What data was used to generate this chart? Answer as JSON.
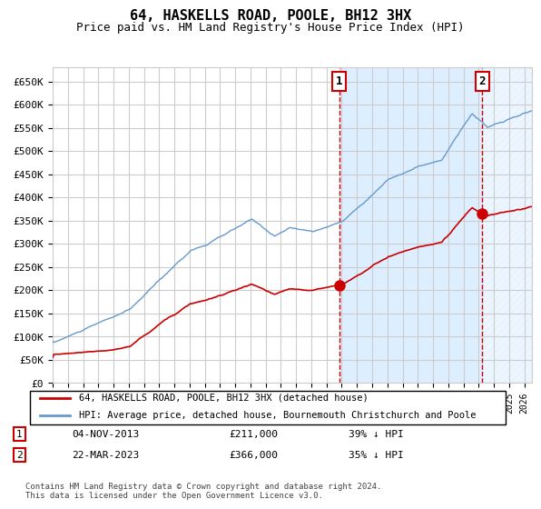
{
  "title": "64, HASKELLS ROAD, POOLE, BH12 3HX",
  "subtitle": "Price paid vs. HM Land Registry's House Price Index (HPI)",
  "legend_label_red": "64, HASKELLS ROAD, POOLE, BH12 3HX (detached house)",
  "legend_label_blue": "HPI: Average price, detached house, Bournemouth Christchurch and Poole",
  "footnote": "Contains HM Land Registry data © Crown copyright and database right 2024.\nThis data is licensed under the Open Government Licence v3.0.",
  "sale1_date": "04-NOV-2013",
  "sale1_price": "£211,000",
  "sale1_hpi": "39% ↓ HPI",
  "sale2_date": "22-MAR-2023",
  "sale2_price": "£366,000",
  "sale2_hpi": "35% ↓ HPI",
  "sale1_x": 2013.84,
  "sale2_x": 2023.22,
  "sale1_y": 211000,
  "sale2_y": 366000,
  "ylim": [
    0,
    680000
  ],
  "xlim_start": 1995.0,
  "xlim_end": 2026.5,
  "background_fill_start": 2013.84,
  "background_fill_end": 2023.22,
  "hatch_start": 2023.22,
  "hatch_end": 2026.5,
  "color_red": "#cc0000",
  "color_blue": "#6699cc",
  "color_bg_fill": "#ddeeff",
  "color_hatch": "#aabbcc",
  "grid_color": "#cccccc",
  "box_color": "#cc0000"
}
